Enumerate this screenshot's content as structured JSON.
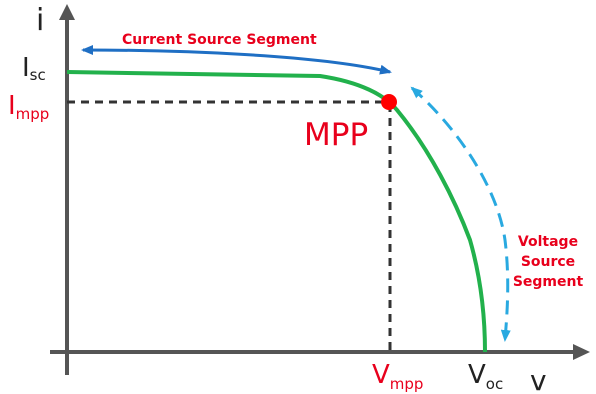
{
  "labels": {
    "y_axis": "i",
    "x_axis": "v",
    "isc_main": "I",
    "isc_sub": "sc",
    "impp_main": "I",
    "impp_sub": "mpp",
    "vmpp_main": "V",
    "vmpp_sub": "mpp",
    "voc_main": "V",
    "voc_sub": "oc",
    "mpp": "MPP",
    "current_segment": "Current Source Segment",
    "voltage_segment_line1": "Voltage",
    "voltage_segment_line2": "Source",
    "voltage_segment_line3": "Segment"
  },
  "colors": {
    "axis": "#555555",
    "curve": "#22b14c",
    "mpp_dot": "#ff0000",
    "red_text": "#e8001c",
    "current_arrow": "#1f6fc4",
    "voltage_arrow": "#29a9e0",
    "dashed": "#333333"
  }
}
